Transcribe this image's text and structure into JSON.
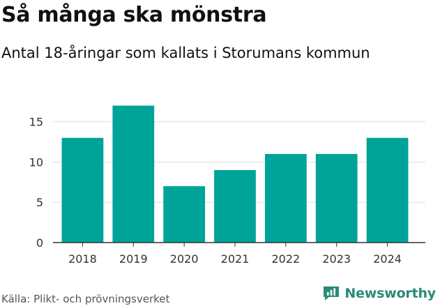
{
  "title": "Så många ska mönstra",
  "subtitle": "Antal 18-åringar som kallats i Storumans kommun",
  "footer": {
    "source": "Källa: Plikt- och prövningsverket",
    "brand": "Newsworthy"
  },
  "colors": {
    "bar": "#00a398",
    "grid": "#dddddd",
    "axis": "#333333",
    "brand": "#2b8a77"
  },
  "icons": {
    "brand": "newsworthy-logo-icon"
  },
  "chart_data": {
    "type": "bar",
    "title": "Så många ska mönstra",
    "subtitle": "Antal 18-åringar som kallats i Storumans kommun",
    "categories": [
      "2018",
      "2019",
      "2020",
      "2021",
      "2022",
      "2023",
      "2024"
    ],
    "values": [
      13,
      17,
      7,
      9,
      11,
      11,
      13
    ],
    "xlabel": "",
    "ylabel": "",
    "ylim": [
      0,
      18
    ],
    "yticks": [
      0,
      5,
      10,
      15
    ],
    "grid": true,
    "legend": "none"
  }
}
